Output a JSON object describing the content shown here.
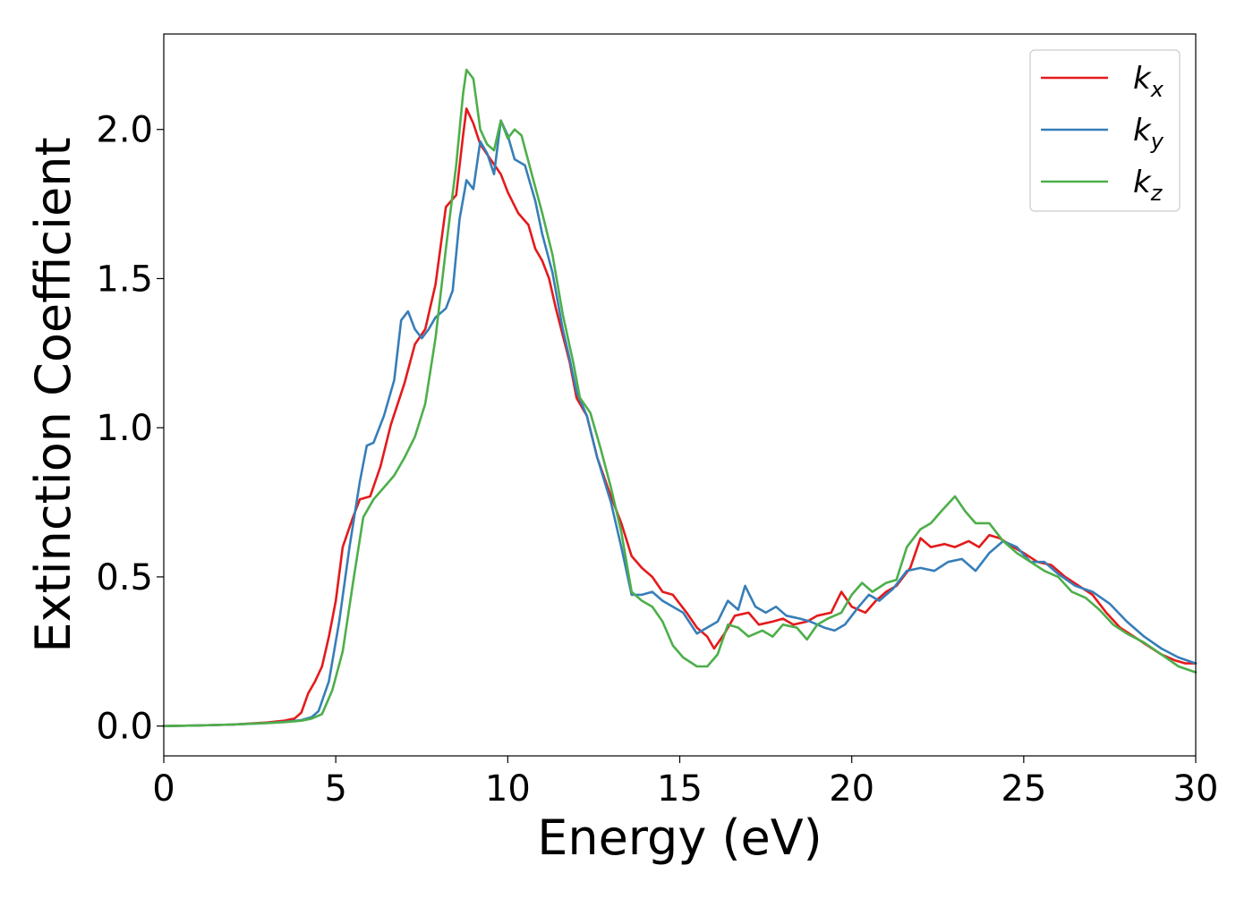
{
  "chart_data": {
    "type": "line",
    "xlabel": "Energy (eV)",
    "ylabel": "Extinction Coefficient",
    "xlim": [
      0,
      30
    ],
    "ylim": [
      -0.1,
      2.32
    ],
    "xticks": [
      0,
      5,
      10,
      15,
      20,
      25,
      30
    ],
    "yticks": [
      0.0,
      0.5,
      1.0,
      1.5,
      2.0
    ],
    "xtick_labels": [
      "0",
      "5",
      "10",
      "15",
      "20",
      "25",
      "30"
    ],
    "ytick_labels": [
      "0.0",
      "0.5",
      "1.0",
      "1.5",
      "2.0"
    ],
    "grid": false,
    "legend_position": "top-right",
    "series": [
      {
        "name": "k",
        "subscript": "x",
        "color": "#e41a1c",
        "points": [
          [
            0,
            0
          ],
          [
            1,
            0.002
          ],
          [
            2,
            0.005
          ],
          [
            3,
            0.012
          ],
          [
            3.5,
            0.018
          ],
          [
            3.8,
            0.025
          ],
          [
            4.0,
            0.045
          ],
          [
            4.2,
            0.11
          ],
          [
            4.4,
            0.15
          ],
          [
            4.6,
            0.2
          ],
          [
            4.8,
            0.3
          ],
          [
            5.0,
            0.42
          ],
          [
            5.2,
            0.6
          ],
          [
            5.5,
            0.7
          ],
          [
            5.7,
            0.76
          ],
          [
            6.0,
            0.77
          ],
          [
            6.3,
            0.87
          ],
          [
            6.6,
            1.01
          ],
          [
            7.0,
            1.15
          ],
          [
            7.3,
            1.28
          ],
          [
            7.6,
            1.33
          ],
          [
            7.9,
            1.48
          ],
          [
            8.2,
            1.74
          ],
          [
            8.5,
            1.78
          ],
          [
            8.7,
            1.98
          ],
          [
            8.8,
            2.07
          ],
          [
            9.0,
            2.02
          ],
          [
            9.2,
            1.95
          ],
          [
            9.5,
            1.9
          ],
          [
            9.8,
            1.85
          ],
          [
            10.0,
            1.79
          ],
          [
            10.3,
            1.72
          ],
          [
            10.6,
            1.68
          ],
          [
            10.8,
            1.6
          ],
          [
            11.0,
            1.56
          ],
          [
            11.2,
            1.5
          ],
          [
            11.4,
            1.4
          ],
          [
            11.6,
            1.31
          ],
          [
            11.8,
            1.22
          ],
          [
            12.0,
            1.1
          ],
          [
            12.3,
            1.04
          ],
          [
            12.6,
            0.9
          ],
          [
            13.0,
            0.77
          ],
          [
            13.3,
            0.68
          ],
          [
            13.6,
            0.57
          ],
          [
            13.9,
            0.53
          ],
          [
            14.2,
            0.5
          ],
          [
            14.5,
            0.45
          ],
          [
            14.8,
            0.44
          ],
          [
            15.2,
            0.38
          ],
          [
            15.5,
            0.33
          ],
          [
            15.8,
            0.3
          ],
          [
            16.0,
            0.26
          ],
          [
            16.3,
            0.31
          ],
          [
            16.6,
            0.37
          ],
          [
            17.0,
            0.38
          ],
          [
            17.3,
            0.34
          ],
          [
            17.7,
            0.35
          ],
          [
            18.0,
            0.36
          ],
          [
            18.3,
            0.34
          ],
          [
            18.7,
            0.35
          ],
          [
            19.0,
            0.37
          ],
          [
            19.4,
            0.38
          ],
          [
            19.7,
            0.45
          ],
          [
            20.0,
            0.4
          ],
          [
            20.4,
            0.38
          ],
          [
            20.7,
            0.42
          ],
          [
            21.0,
            0.45
          ],
          [
            21.3,
            0.47
          ],
          [
            21.7,
            0.53
          ],
          [
            22.0,
            0.63
          ],
          [
            22.3,
            0.6
          ],
          [
            22.7,
            0.61
          ],
          [
            23.0,
            0.6
          ],
          [
            23.4,
            0.62
          ],
          [
            23.7,
            0.6
          ],
          [
            24.0,
            0.64
          ],
          [
            24.3,
            0.63
          ],
          [
            24.7,
            0.6
          ],
          [
            25.0,
            0.58
          ],
          [
            25.4,
            0.55
          ],
          [
            25.8,
            0.54
          ],
          [
            26.2,
            0.5
          ],
          [
            26.6,
            0.47
          ],
          [
            27.0,
            0.44
          ],
          [
            27.4,
            0.38
          ],
          [
            27.8,
            0.33
          ],
          [
            28.2,
            0.3
          ],
          [
            28.6,
            0.27
          ],
          [
            29.0,
            0.24
          ],
          [
            29.4,
            0.22
          ],
          [
            29.7,
            0.21
          ],
          [
            30.0,
            0.21
          ]
        ]
      },
      {
        "name": "k",
        "subscript": "y",
        "color": "#377eb8",
        "points": [
          [
            0,
            0
          ],
          [
            1,
            0.002
          ],
          [
            2,
            0.005
          ],
          [
            3,
            0.01
          ],
          [
            3.5,
            0.014
          ],
          [
            4.0,
            0.02
          ],
          [
            4.3,
            0.03
          ],
          [
            4.5,
            0.05
          ],
          [
            4.8,
            0.15
          ],
          [
            5.1,
            0.35
          ],
          [
            5.4,
            0.6
          ],
          [
            5.7,
            0.82
          ],
          [
            5.9,
            0.94
          ],
          [
            6.1,
            0.95
          ],
          [
            6.4,
            1.04
          ],
          [
            6.7,
            1.16
          ],
          [
            6.9,
            1.36
          ],
          [
            7.1,
            1.39
          ],
          [
            7.3,
            1.33
          ],
          [
            7.5,
            1.3
          ],
          [
            7.7,
            1.33
          ],
          [
            7.9,
            1.37
          ],
          [
            8.2,
            1.4
          ],
          [
            8.4,
            1.46
          ],
          [
            8.6,
            1.7
          ],
          [
            8.8,
            1.83
          ],
          [
            9.0,
            1.8
          ],
          [
            9.2,
            1.96
          ],
          [
            9.4,
            1.92
          ],
          [
            9.6,
            1.85
          ],
          [
            9.8,
            2.03
          ],
          [
            10.0,
            1.98
          ],
          [
            10.2,
            1.9
          ],
          [
            10.5,
            1.88
          ],
          [
            10.8,
            1.76
          ],
          [
            11.0,
            1.65
          ],
          [
            11.3,
            1.52
          ],
          [
            11.6,
            1.33
          ],
          [
            11.8,
            1.23
          ],
          [
            12.0,
            1.12
          ],
          [
            12.3,
            1.04
          ],
          [
            12.6,
            0.9
          ],
          [
            13.0,
            0.75
          ],
          [
            13.3,
            0.6
          ],
          [
            13.6,
            0.44
          ],
          [
            13.9,
            0.44
          ],
          [
            14.2,
            0.45
          ],
          [
            14.5,
            0.42
          ],
          [
            14.8,
            0.4
          ],
          [
            15.1,
            0.38
          ],
          [
            15.5,
            0.31
          ],
          [
            15.8,
            0.33
          ],
          [
            16.1,
            0.35
          ],
          [
            16.4,
            0.42
          ],
          [
            16.7,
            0.39
          ],
          [
            16.9,
            0.47
          ],
          [
            17.2,
            0.4
          ],
          [
            17.5,
            0.38
          ],
          [
            17.8,
            0.4
          ],
          [
            18.1,
            0.37
          ],
          [
            18.5,
            0.36
          ],
          [
            18.8,
            0.35
          ],
          [
            19.2,
            0.33
          ],
          [
            19.5,
            0.32
          ],
          [
            19.8,
            0.34
          ],
          [
            20.2,
            0.4
          ],
          [
            20.5,
            0.44
          ],
          [
            20.8,
            0.42
          ],
          [
            21.2,
            0.46
          ],
          [
            21.6,
            0.52
          ],
          [
            22.0,
            0.53
          ],
          [
            22.4,
            0.52
          ],
          [
            22.8,
            0.55
          ],
          [
            23.2,
            0.56
          ],
          [
            23.6,
            0.52
          ],
          [
            24.0,
            0.58
          ],
          [
            24.4,
            0.62
          ],
          [
            24.8,
            0.6
          ],
          [
            25.2,
            0.55
          ],
          [
            25.6,
            0.55
          ],
          [
            26.0,
            0.51
          ],
          [
            26.5,
            0.47
          ],
          [
            27.0,
            0.45
          ],
          [
            27.5,
            0.41
          ],
          [
            28.0,
            0.35
          ],
          [
            28.5,
            0.3
          ],
          [
            29.0,
            0.26
          ],
          [
            29.5,
            0.23
          ],
          [
            30.0,
            0.21
          ]
        ]
      },
      {
        "name": "k",
        "subscript": "z",
        "color": "#4daf4a",
        "points": [
          [
            0,
            0
          ],
          [
            1,
            0.002
          ],
          [
            2,
            0.005
          ],
          [
            3,
            0.01
          ],
          [
            3.5,
            0.013
          ],
          [
            4.0,
            0.018
          ],
          [
            4.3,
            0.025
          ],
          [
            4.6,
            0.04
          ],
          [
            4.9,
            0.12
          ],
          [
            5.2,
            0.25
          ],
          [
            5.5,
            0.48
          ],
          [
            5.8,
            0.7
          ],
          [
            6.1,
            0.76
          ],
          [
            6.4,
            0.8
          ],
          [
            6.7,
            0.84
          ],
          [
            7.0,
            0.9
          ],
          [
            7.3,
            0.97
          ],
          [
            7.6,
            1.08
          ],
          [
            7.9,
            1.3
          ],
          [
            8.2,
            1.6
          ],
          [
            8.5,
            1.88
          ],
          [
            8.7,
            2.12
          ],
          [
            8.8,
            2.2
          ],
          [
            9.0,
            2.17
          ],
          [
            9.2,
            2.0
          ],
          [
            9.4,
            1.95
          ],
          [
            9.6,
            1.93
          ],
          [
            9.8,
            2.03
          ],
          [
            10.0,
            1.97
          ],
          [
            10.2,
            2.0
          ],
          [
            10.4,
            1.98
          ],
          [
            10.7,
            1.85
          ],
          [
            11.0,
            1.72
          ],
          [
            11.3,
            1.58
          ],
          [
            11.6,
            1.38
          ],
          [
            11.9,
            1.22
          ],
          [
            12.1,
            1.1
          ],
          [
            12.4,
            1.05
          ],
          [
            12.7,
            0.93
          ],
          [
            13.0,
            0.8
          ],
          [
            13.3,
            0.65
          ],
          [
            13.6,
            0.45
          ],
          [
            13.9,
            0.42
          ],
          [
            14.2,
            0.4
          ],
          [
            14.5,
            0.35
          ],
          [
            14.8,
            0.27
          ],
          [
            15.1,
            0.23
          ],
          [
            15.5,
            0.2
          ],
          [
            15.8,
            0.2
          ],
          [
            16.1,
            0.24
          ],
          [
            16.4,
            0.34
          ],
          [
            16.7,
            0.33
          ],
          [
            17.0,
            0.3
          ],
          [
            17.4,
            0.32
          ],
          [
            17.7,
            0.3
          ],
          [
            18.0,
            0.34
          ],
          [
            18.4,
            0.33
          ],
          [
            18.7,
            0.29
          ],
          [
            19.0,
            0.34
          ],
          [
            19.3,
            0.36
          ],
          [
            19.7,
            0.38
          ],
          [
            20.0,
            0.44
          ],
          [
            20.3,
            0.48
          ],
          [
            20.6,
            0.45
          ],
          [
            21.0,
            0.48
          ],
          [
            21.3,
            0.49
          ],
          [
            21.6,
            0.6
          ],
          [
            22.0,
            0.66
          ],
          [
            22.3,
            0.68
          ],
          [
            22.6,
            0.72
          ],
          [
            23.0,
            0.77
          ],
          [
            23.3,
            0.72
          ],
          [
            23.6,
            0.68
          ],
          [
            24.0,
            0.68
          ],
          [
            24.4,
            0.62
          ],
          [
            24.8,
            0.58
          ],
          [
            25.2,
            0.55
          ],
          [
            25.6,
            0.52
          ],
          [
            26.0,
            0.5
          ],
          [
            26.4,
            0.45
          ],
          [
            26.8,
            0.43
          ],
          [
            27.2,
            0.39
          ],
          [
            27.6,
            0.34
          ],
          [
            28.0,
            0.31
          ],
          [
            28.5,
            0.28
          ],
          [
            29.0,
            0.24
          ],
          [
            29.5,
            0.2
          ],
          [
            30.0,
            0.18
          ]
        ]
      }
    ]
  }
}
